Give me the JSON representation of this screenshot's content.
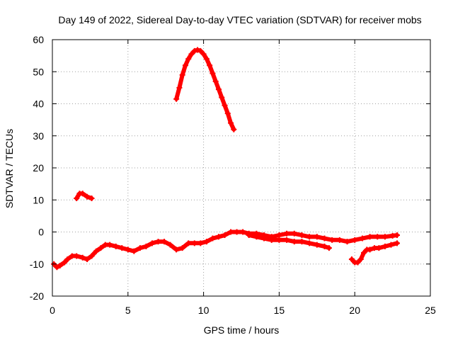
{
  "chart_data": {
    "type": "line",
    "title": "Day 149 of 2022, Sidereal Day-to-day VTEC variation (SDTVAR) for receiver mobs",
    "xlabel": "GPS time / hours",
    "ylabel": "SDTVAR / TECUs",
    "xlim": [
      0,
      25
    ],
    "ylim": [
      -20,
      60
    ],
    "xticks": [
      0,
      5,
      10,
      15,
      20,
      25
    ],
    "yticks": [
      -20,
      -10,
      0,
      10,
      20,
      30,
      40,
      50,
      60
    ],
    "grid": true,
    "legend": "none",
    "color": "#ff0000",
    "series": [
      {
        "name": "segment-main",
        "x": [
          0.1,
          0.3,
          0.5,
          0.8,
          1.0,
          1.3,
          1.6,
          2.0,
          2.3,
          2.6,
          2.9,
          3.2,
          3.5,
          3.8,
          4.2,
          4.6,
          5.0,
          5.4,
          5.8,
          6.2,
          6.6,
          7.0,
          7.4,
          7.8,
          8.2,
          8.6,
          9.0,
          9.4,
          9.8,
          10.2,
          10.6,
          11.0,
          11.4,
          11.8,
          12.2,
          12.6,
          13.0,
          13.5,
          14.0,
          14.5,
          15.0,
          15.5,
          16.0,
          16.5,
          17.0,
          17.5,
          18.0,
          18.5,
          19.0,
          19.5,
          20.0,
          20.5,
          21.0,
          21.5,
          22.0,
          22.5,
          22.8
        ],
        "y": [
          -10,
          -11,
          -10.5,
          -9.5,
          -8.5,
          -7.5,
          -7.5,
          -8,
          -8.5,
          -7.5,
          -6,
          -5,
          -4,
          -4,
          -4.5,
          -5,
          -5.5,
          -6,
          -5,
          -4.5,
          -3.5,
          -3,
          -3,
          -4,
          -5.5,
          -5,
          -3.5,
          -3.5,
          -3.5,
          -3,
          -2,
          -1.5,
          -1,
          0,
          0,
          0,
          -0.5,
          -0.5,
          -1,
          -1.5,
          -1,
          -0.5,
          -0.5,
          -1,
          -1.5,
          -1.5,
          -2,
          -2.5,
          -2.5,
          -3,
          -2.5,
          -2,
          -1.5,
          -1.5,
          -1.5,
          -1.2,
          -1
        ]
      },
      {
        "name": "segment-lower-band",
        "x": [
          13.0,
          13.5,
          14.0,
          14.5,
          15.0,
          15.5,
          16.0,
          16.5,
          17.0,
          17.5,
          18.0,
          18.3
        ],
        "y": [
          -1,
          -1.5,
          -2,
          -2.5,
          -2.5,
          -2.5,
          -3,
          -3,
          -3.5,
          -4,
          -4.5,
          -5
        ]
      },
      {
        "name": "segment-early-peak",
        "x": [
          1.6,
          1.8,
          2.0,
          2.3,
          2.6
        ],
        "y": [
          10.5,
          12,
          12,
          11,
          10.5
        ]
      },
      {
        "name": "segment-large-arc",
        "x": [
          8.2,
          8.4,
          8.6,
          8.8,
          9.0,
          9.2,
          9.4,
          9.6,
          9.8,
          10.0,
          10.2,
          10.4,
          10.6,
          10.8,
          11.0,
          11.2,
          11.4,
          11.6,
          11.8,
          12.0
        ],
        "y": [
          41.5,
          45,
          49,
          52,
          54,
          55.5,
          56.5,
          56.8,
          56.5,
          55.5,
          54,
          52,
          49.5,
          47,
          44.5,
          42,
          39.5,
          37,
          34,
          32
        ]
      },
      {
        "name": "segment-late",
        "x": [
          19.8,
          20.0,
          20.2,
          20.4,
          20.6,
          20.8,
          21.0,
          21.3,
          21.6,
          22.0,
          22.4,
          22.8
        ],
        "y": [
          -8.5,
          -9.5,
          -9.5,
          -8.5,
          -6.5,
          -5.5,
          -5.5,
          -5,
          -5,
          -4.5,
          -4,
          -3.5
        ]
      }
    ]
  }
}
